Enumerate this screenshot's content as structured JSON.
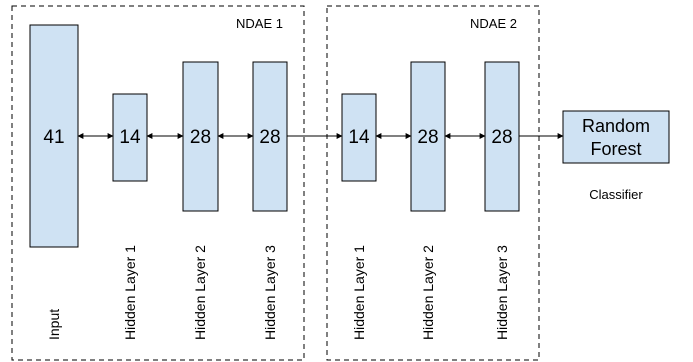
{
  "groups": [
    {
      "title": "NDAE 1"
    },
    {
      "title": "NDAE 2"
    }
  ],
  "layers": [
    {
      "value": "41",
      "label": "Input"
    },
    {
      "value": "14",
      "label": "Hidden Layer 1"
    },
    {
      "value": "28",
      "label": "Hidden Layer 2"
    },
    {
      "value": "28",
      "label": "Hidden Layer 3"
    },
    {
      "value": "14",
      "label": "Hidden Layer  1"
    },
    {
      "value": "28",
      "label": "Hidden Layer 2"
    },
    {
      "value": "28",
      "label": "Hidden Layer 3"
    }
  ],
  "classifier": {
    "line1": "Random",
    "line2": "Forest",
    "caption": "Classifier"
  }
}
